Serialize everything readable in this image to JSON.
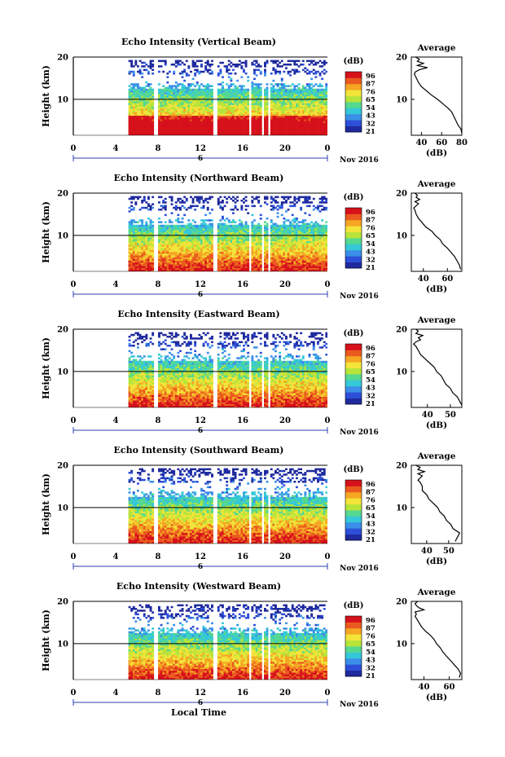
{
  "page": {
    "xlabel": "Local Time",
    "date_label": "Nov 2016",
    "colorbar_unit": "(dB)",
    "colorbar_ticks": [
      "96",
      "87",
      "76",
      "65",
      "54",
      "43",
      "32",
      "21"
    ]
  },
  "colors": {
    "colormap": [
      "#1f2a9e",
      "#2d4fd8",
      "#3b8fe8",
      "#35c8d8",
      "#55d890",
      "#b8e43a",
      "#f2e43a",
      "#f5a623",
      "#ea5a1e",
      "#d6111b"
    ]
  },
  "chart_data": [
    {
      "type": "heatmap",
      "title": "Echo Intensity (Vertical Beam)",
      "ylabel": "Height (km)",
      "x_ticks": [
        "0",
        "4",
        "8",
        "12",
        "16",
        "20",
        "0"
      ],
      "x_center_label": "6",
      "xlim": [
        0,
        24
      ],
      "y_ticks": [
        "20",
        "10"
      ],
      "ylim": [
        1.5,
        20
      ],
      "data_start_hour": 5.2,
      "gaps_hours": [
        [
          7.6,
          8.0
        ],
        [
          13.1,
          13.5
        ],
        [
          16.5,
          16.7
        ],
        [
          17.6,
          17.8
        ],
        [
          18.2,
          18.4
        ]
      ],
      "clear_band_km": [
        [
          16.8,
          17.3
        ],
        [
          13.5,
          15.5
        ]
      ],
      "average_profile": {
        "title": "Average",
        "xlabel": "(dB)",
        "x_ticks": [
          "40",
          "60",
          "80"
        ],
        "xlim": [
          30,
          80
        ],
        "y_ticks": [
          "20",
          "10"
        ],
        "ylim": [
          1.5,
          20
        ],
        "height_km": [
          20,
          19.5,
          19,
          18.5,
          18,
          17.5,
          17,
          16.5,
          16,
          15,
          14,
          13,
          12,
          11,
          10,
          9,
          8,
          7,
          6,
          5,
          4,
          3,
          2
        ],
        "values_db": [
          34,
          38,
          36,
          42,
          36,
          46,
          38,
          34,
          33,
          35,
          37,
          40,
          45,
          50,
          56,
          61,
          66,
          70,
          72,
          74,
          76,
          79,
          80
        ]
      }
    },
    {
      "type": "heatmap",
      "title": "Echo Intensity (Northward Beam)",
      "ylabel": "Height (km)",
      "x_ticks": [
        "0",
        "4",
        "8",
        "12",
        "16",
        "20",
        "0"
      ],
      "x_center_label": "6",
      "xlim": [
        0,
        24
      ],
      "y_ticks": [
        "20",
        "10"
      ],
      "ylim": [
        1.5,
        20
      ],
      "data_start_hour": 5.2,
      "gaps_hours": [
        [
          7.6,
          8.0
        ],
        [
          13.1,
          13.5
        ],
        [
          16.5,
          16.7
        ],
        [
          17.6,
          17.8
        ],
        [
          18.2,
          18.4
        ]
      ],
      "clear_band_km": [
        [
          16.8,
          17.3
        ],
        [
          13.5,
          15.8
        ]
      ],
      "average_profile": {
        "title": "Average",
        "xlabel": "(dB)",
        "x_ticks": [
          "40",
          "60"
        ],
        "xlim": [
          30,
          72
        ],
        "y_ticks": [
          "20",
          "10"
        ],
        "ylim": [
          1.5,
          20
        ],
        "height_km": [
          20,
          19.5,
          19,
          18.5,
          18,
          17.5,
          17,
          16.5,
          16,
          15,
          14,
          13,
          12,
          11,
          10,
          9,
          8,
          7,
          6,
          5,
          4,
          3,
          2
        ],
        "values_db": [
          33,
          35,
          34,
          37,
          33,
          36,
          34,
          32,
          33,
          34,
          36,
          39,
          42,
          47,
          50,
          54,
          56,
          60,
          63,
          66,
          68,
          70,
          71
        ]
      }
    },
    {
      "type": "heatmap",
      "title": "Echo Intensity (Eastward Beam)",
      "ylabel": "Height (km)",
      "x_ticks": [
        "0",
        "4",
        "8",
        "12",
        "16",
        "20",
        "0"
      ],
      "x_center_label": "6",
      "xlim": [
        0,
        24
      ],
      "y_ticks": [
        "20",
        "10"
      ],
      "ylim": [
        1.5,
        20
      ],
      "data_start_hour": 5.2,
      "gaps_hours": [
        [
          7.6,
          8.0
        ],
        [
          13.1,
          13.5
        ],
        [
          16.5,
          16.7
        ],
        [
          17.6,
          17.8
        ],
        [
          18.2,
          18.4
        ]
      ],
      "clear_band_km": [
        [
          16.8,
          17.3
        ],
        [
          13.5,
          15.8
        ]
      ],
      "average_profile": {
        "title": "Average",
        "xlabel": "(dB)",
        "x_ticks": [
          "40",
          "50"
        ],
        "xlim": [
          33,
          55
        ],
        "y_ticks": [
          "20",
          "10"
        ],
        "ylim": [
          1.5,
          20
        ],
        "height_km": [
          20,
          19.5,
          19,
          18.5,
          18,
          17.5,
          17,
          16.5,
          16,
          15,
          14,
          13,
          12,
          11,
          10,
          9,
          8,
          7,
          6,
          5,
          4,
          3,
          2
        ],
        "values_db": [
          35,
          36,
          35,
          38,
          36,
          37,
          35,
          34,
          35,
          36,
          37,
          39,
          41,
          43,
          44,
          46,
          47,
          48,
          50,
          51,
          53,
          54,
          55
        ]
      }
    },
    {
      "type": "heatmap",
      "title": "Echo Intensity (Southward Beam)",
      "ylabel": "Height (km)",
      "x_ticks": [
        "0",
        "4",
        "8",
        "12",
        "16",
        "20",
        "0"
      ],
      "x_center_label": "6",
      "xlim": [
        0,
        24
      ],
      "y_ticks": [
        "20",
        "10"
      ],
      "ylim": [
        1.5,
        20
      ],
      "data_start_hour": 5.2,
      "gaps_hours": [
        [
          7.6,
          8.0
        ],
        [
          13.1,
          13.5
        ],
        [
          16.5,
          16.7
        ],
        [
          17.6,
          17.8
        ],
        [
          18.2,
          18.4
        ]
      ],
      "clear_band_km": [
        [
          16.8,
          17.3
        ],
        [
          13.5,
          15.8
        ]
      ],
      "average_profile": {
        "title": "Average",
        "xlabel": "(dB)",
        "x_ticks": [
          "40",
          "50"
        ],
        "xlim": [
          33,
          56
        ],
        "y_ticks": [
          "20",
          "10"
        ],
        "ylim": [
          1.5,
          20
        ],
        "height_km": [
          20,
          19.5,
          19,
          18.5,
          18,
          17.5,
          17,
          16.5,
          16,
          15,
          14,
          13,
          12,
          11,
          10,
          9,
          8,
          7,
          6,
          5,
          4,
          3,
          2
        ],
        "values_db": [
          35,
          37,
          36,
          39,
          36,
          38,
          37,
          36,
          37,
          38,
          38,
          40,
          41,
          43,
          45,
          46,
          48,
          49,
          51,
          52,
          55,
          54,
          53
        ]
      }
    },
    {
      "type": "heatmap",
      "title": "Echo Intensity (Westward Beam)",
      "ylabel": "Height (km)",
      "x_ticks": [
        "0",
        "4",
        "8",
        "12",
        "16",
        "20",
        "0"
      ],
      "x_center_label": "6",
      "xlim": [
        0,
        24
      ],
      "y_ticks": [
        "20",
        "10"
      ],
      "ylim": [
        1.5,
        20
      ],
      "data_start_hour": 5.2,
      "gaps_hours": [
        [
          7.6,
          8.0
        ],
        [
          13.1,
          13.5
        ],
        [
          16.5,
          16.7
        ],
        [
          17.6,
          17.8
        ],
        [
          18.2,
          18.4
        ]
      ],
      "clear_band_km": [
        [
          16.8,
          17.3
        ],
        [
          13.5,
          15.8
        ]
      ],
      "average_profile": {
        "title": "Average",
        "xlabel": "(dB)",
        "x_ticks": [
          "40",
          "60"
        ],
        "xlim": [
          30,
          70
        ],
        "y_ticks": [
          "20",
          "10"
        ],
        "ylim": [
          1.5,
          20
        ],
        "height_km": [
          20,
          19.5,
          19,
          18.5,
          18,
          17.5,
          17,
          16.5,
          16,
          15,
          14,
          13,
          12,
          11,
          10,
          9,
          8,
          7,
          6,
          5,
          4,
          3,
          2
        ],
        "values_db": [
          35,
          33,
          34,
          36,
          40,
          33,
          34,
          33,
          34,
          36,
          38,
          41,
          45,
          48,
          50,
          53,
          55,
          58,
          61,
          64,
          67,
          69,
          68
        ]
      }
    }
  ]
}
